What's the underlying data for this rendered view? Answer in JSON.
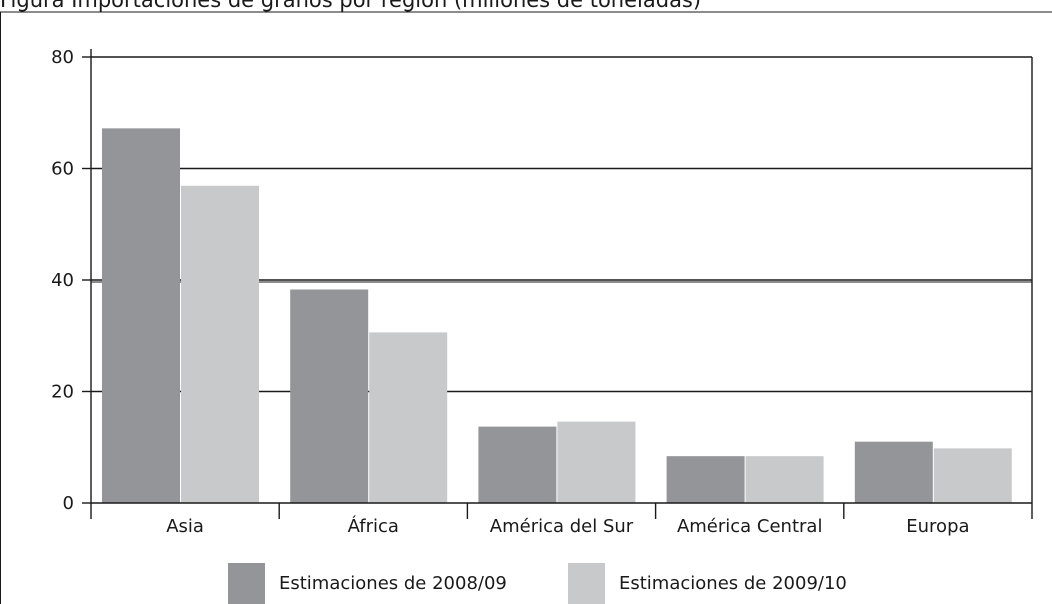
{
  "title": "Figura  Importaciones de granos por región (millones de toneladas)",
  "chart_data": {
    "type": "bar",
    "categories": [
      "Asia",
      "África",
      "América del Sur",
      "América Central",
      "Europa"
    ],
    "series": [
      {
        "name": "Estimaciones de 2008/09",
        "values": [
          67.2,
          38.3,
          13.7,
          8.4,
          11.0
        ],
        "color": "#939598"
      },
      {
        "name": "Estimaciones de 2009/10",
        "values": [
          56.9,
          30.6,
          14.6,
          8.4,
          9.8
        ],
        "color": "#c8c9ca"
      }
    ],
    "ylim": [
      0,
      80
    ],
    "yticks": [
      0,
      20,
      40,
      60,
      80
    ],
    "grid": true,
    "legend_position": "bottom"
  }
}
